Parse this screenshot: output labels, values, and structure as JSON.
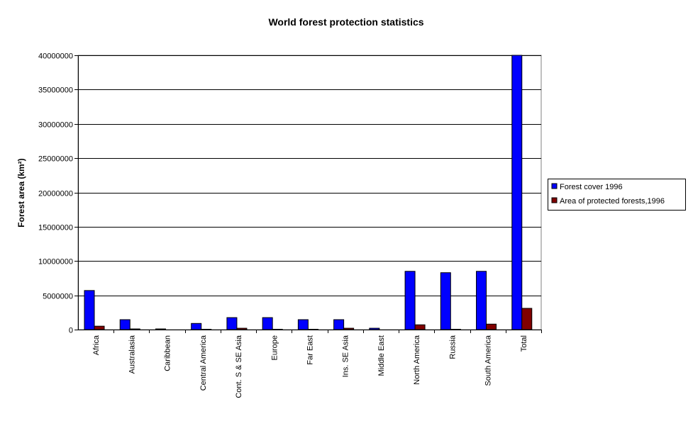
{
  "chart_data": {
    "type": "bar",
    "title": "World forest protection statistics",
    "xlabel": "",
    "ylabel": "Forest area (km²)",
    "ylim": [
      0,
      40000000
    ],
    "yticks": [
      0,
      5000000,
      10000000,
      15000000,
      20000000,
      25000000,
      30000000,
      35000000,
      40000000
    ],
    "grid": true,
    "legend_position": "right",
    "categories": [
      "Africa",
      "Australasia",
      "Caribbean",
      "Central America",
      "Cont. S & SE Asia",
      "Europe",
      "Far East",
      "Ins. SE Asia",
      "Middle East",
      "North America",
      "Russia",
      "South America",
      "Total"
    ],
    "series": [
      {
        "name": "Forest cover 1996",
        "color": "#0000ff",
        "values": [
          5700000,
          1450000,
          100000,
          900000,
          1750000,
          1750000,
          1450000,
          1450000,
          200000,
          8500000,
          8300000,
          8500000,
          40000000
        ]
      },
      {
        "name": "Area of protected forests,1996",
        "color": "#800000",
        "values": [
          500000,
          100000,
          0,
          50000,
          200000,
          50000,
          50000,
          200000,
          0,
          700000,
          50000,
          800000,
          3100000
        ]
      }
    ]
  }
}
